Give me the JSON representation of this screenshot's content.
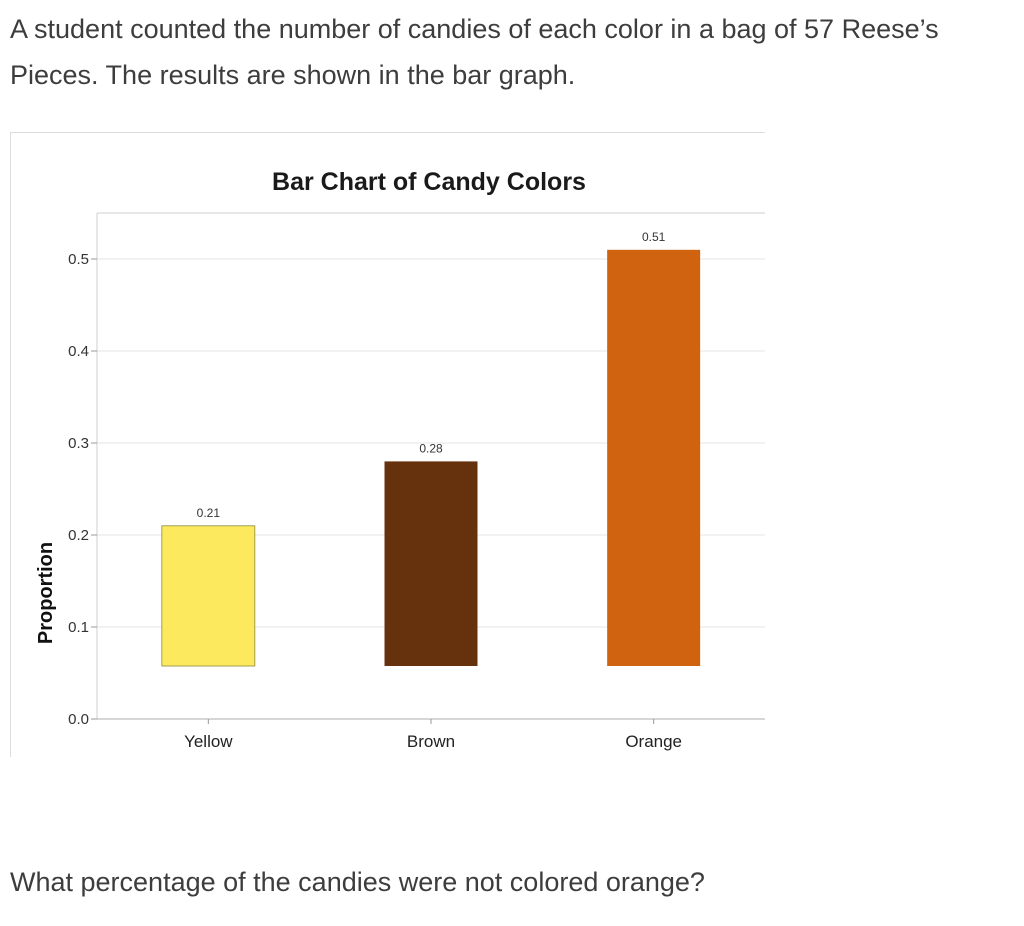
{
  "question": {
    "intro": "A student counted the number of candies of each color in a bag of 57 Reese’s Pieces. The results are shown in the bar graph.",
    "ask": "What percentage of the candies were not colored orange?"
  },
  "chart_data": {
    "type": "bar",
    "title": "Bar Chart of Candy Colors",
    "xlabel": "",
    "ylabel": "Proportion",
    "categories": [
      "Yellow",
      "Brown",
      "Orange"
    ],
    "values": [
      0.21,
      0.28,
      0.51
    ],
    "data_labels": [
      "0.21",
      "0.28",
      "0.51"
    ],
    "colors": [
      "#fde95e",
      "#66320e",
      "#cf6310"
    ],
    "ylim": [
      0,
      0.55
    ],
    "yticks": [
      0.0,
      0.1,
      0.2,
      0.3,
      0.4,
      0.5
    ],
    "ytick_labels": [
      "0.0",
      "0.1",
      "0.2",
      "0.3",
      "0.4",
      "0.5"
    ],
    "grid": true,
    "legend": "none"
  }
}
